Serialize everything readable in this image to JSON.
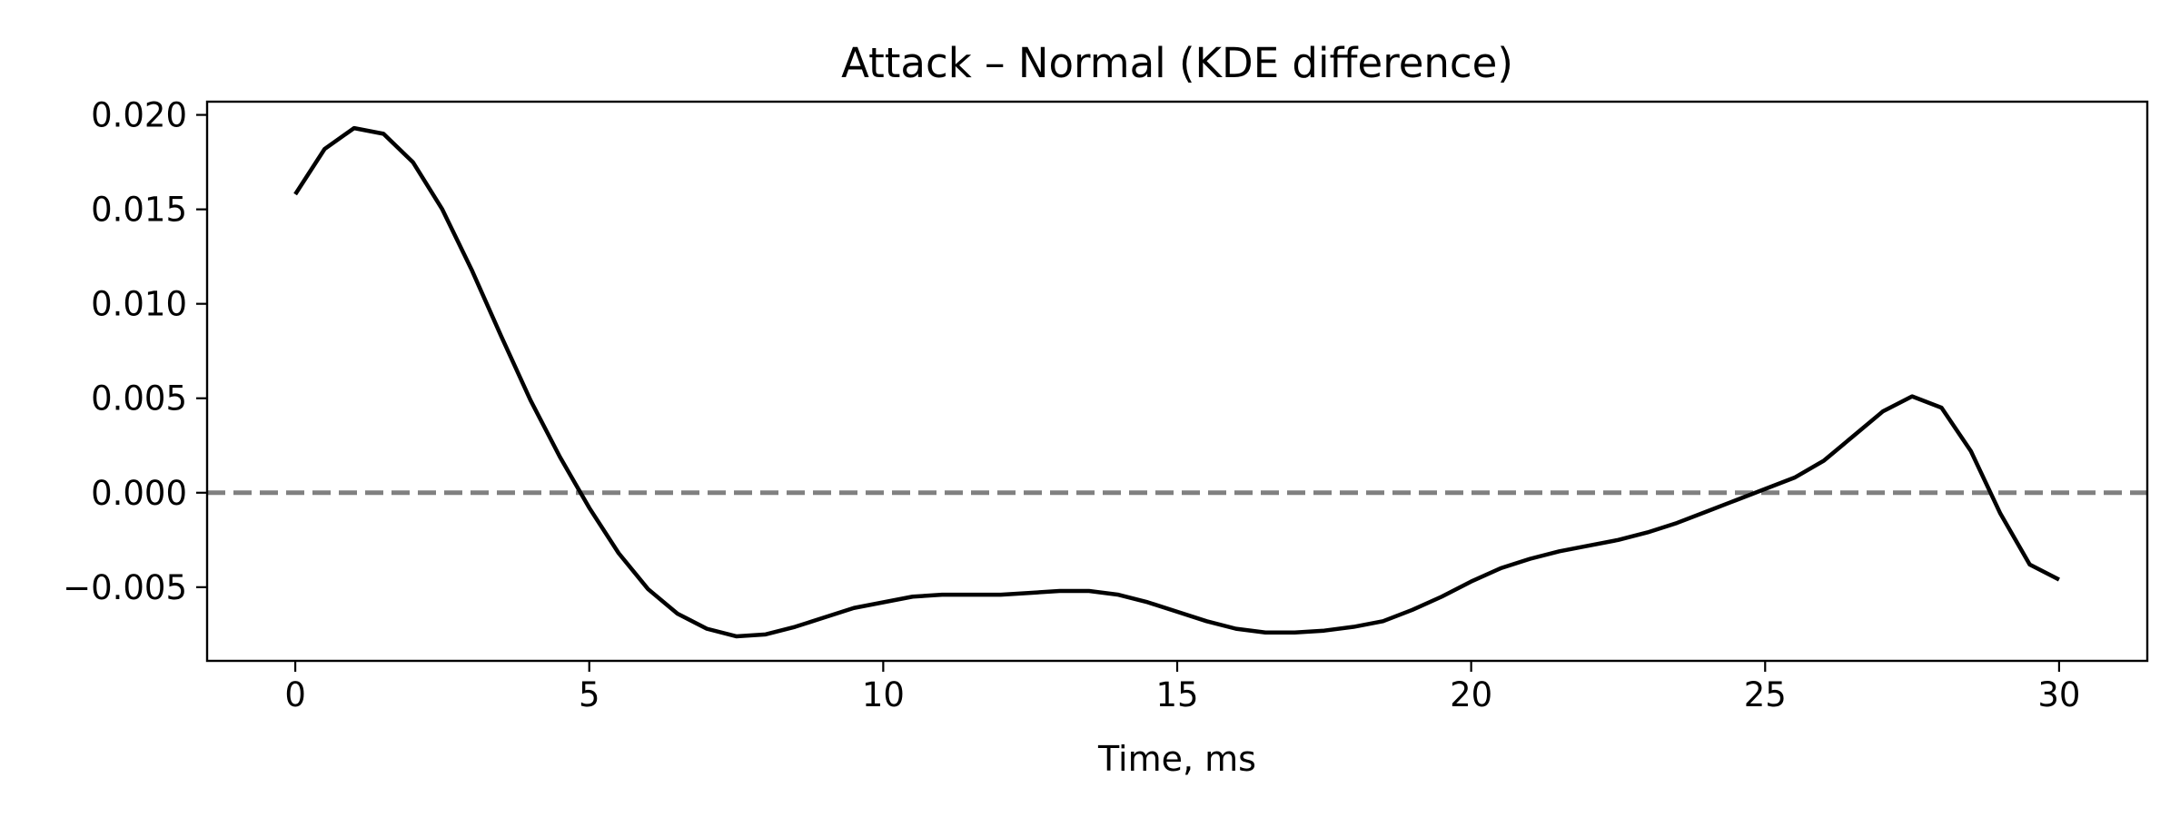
{
  "chart_data": {
    "type": "line",
    "title": "Attack – Normal (KDE difference)",
    "xlabel": "Time, ms",
    "ylabel": "",
    "xlim": [
      -1.5,
      31.5
    ],
    "ylim": [
      -0.0089,
      0.0207
    ],
    "x_ticks": [
      0,
      5,
      10,
      15,
      20,
      25,
      30
    ],
    "x_tick_labels": [
      "0",
      "5",
      "10",
      "15",
      "20",
      "25",
      "30"
    ],
    "y_ticks": [
      -0.005,
      0.0,
      0.005,
      0.01,
      0.015,
      0.02
    ],
    "y_tick_labels": [
      "−0.005",
      "0.000",
      "0.005",
      "0.010",
      "0.015",
      "0.020"
    ],
    "grid": false,
    "legend": "none",
    "series": [
      {
        "color": "#000000",
        "style": "solid",
        "x": [
          0,
          0.5,
          1.0,
          1.5,
          2.0,
          2.5,
          3.0,
          3.5,
          4.0,
          4.5,
          5.0,
          5.5,
          6.0,
          6.5,
          7.0,
          7.5,
          8.0,
          8.5,
          9.0,
          9.5,
          10.0,
          10.5,
          11.0,
          11.5,
          12.0,
          12.5,
          13.0,
          13.5,
          14.0,
          14.5,
          15.0,
          15.5,
          16.0,
          16.5,
          17.0,
          17.5,
          18.0,
          18.5,
          19.0,
          19.5,
          20.0,
          20.5,
          21.0,
          21.5,
          22.0,
          22.5,
          23.0,
          23.5,
          24.0,
          24.5,
          25.0,
          25.5,
          26.0,
          26.5,
          27.0,
          27.5,
          28.0,
          28.5,
          29.0,
          29.5,
          30.0
        ],
        "y": [
          0.0158,
          0.0182,
          0.0193,
          0.019,
          0.0175,
          0.015,
          0.0118,
          0.0083,
          0.0049,
          0.0019,
          -0.0008,
          -0.0032,
          -0.0051,
          -0.0064,
          -0.0072,
          -0.0076,
          -0.0075,
          -0.0071,
          -0.0066,
          -0.0061,
          -0.0058,
          -0.0055,
          -0.0054,
          -0.0054,
          -0.0054,
          -0.0053,
          -0.0052,
          -0.0052,
          -0.0054,
          -0.0058,
          -0.0063,
          -0.0068,
          -0.0072,
          -0.0074,
          -0.0074,
          -0.0073,
          -0.0071,
          -0.0068,
          -0.0062,
          -0.0055,
          -0.0047,
          -0.004,
          -0.0035,
          -0.0031,
          -0.0028,
          -0.0025,
          -0.0021,
          -0.0016,
          -0.001,
          -0.0004,
          0.0002,
          0.0008,
          0.0017,
          0.003,
          0.0043,
          0.0051,
          0.0045,
          0.0022,
          -0.0011,
          -0.0038,
          -0.0046
        ]
      },
      {
        "color": "#808080",
        "style": "dashed",
        "x": [
          -1.5,
          31.5
        ],
        "y": [
          0.0,
          0.0
        ]
      }
    ]
  }
}
